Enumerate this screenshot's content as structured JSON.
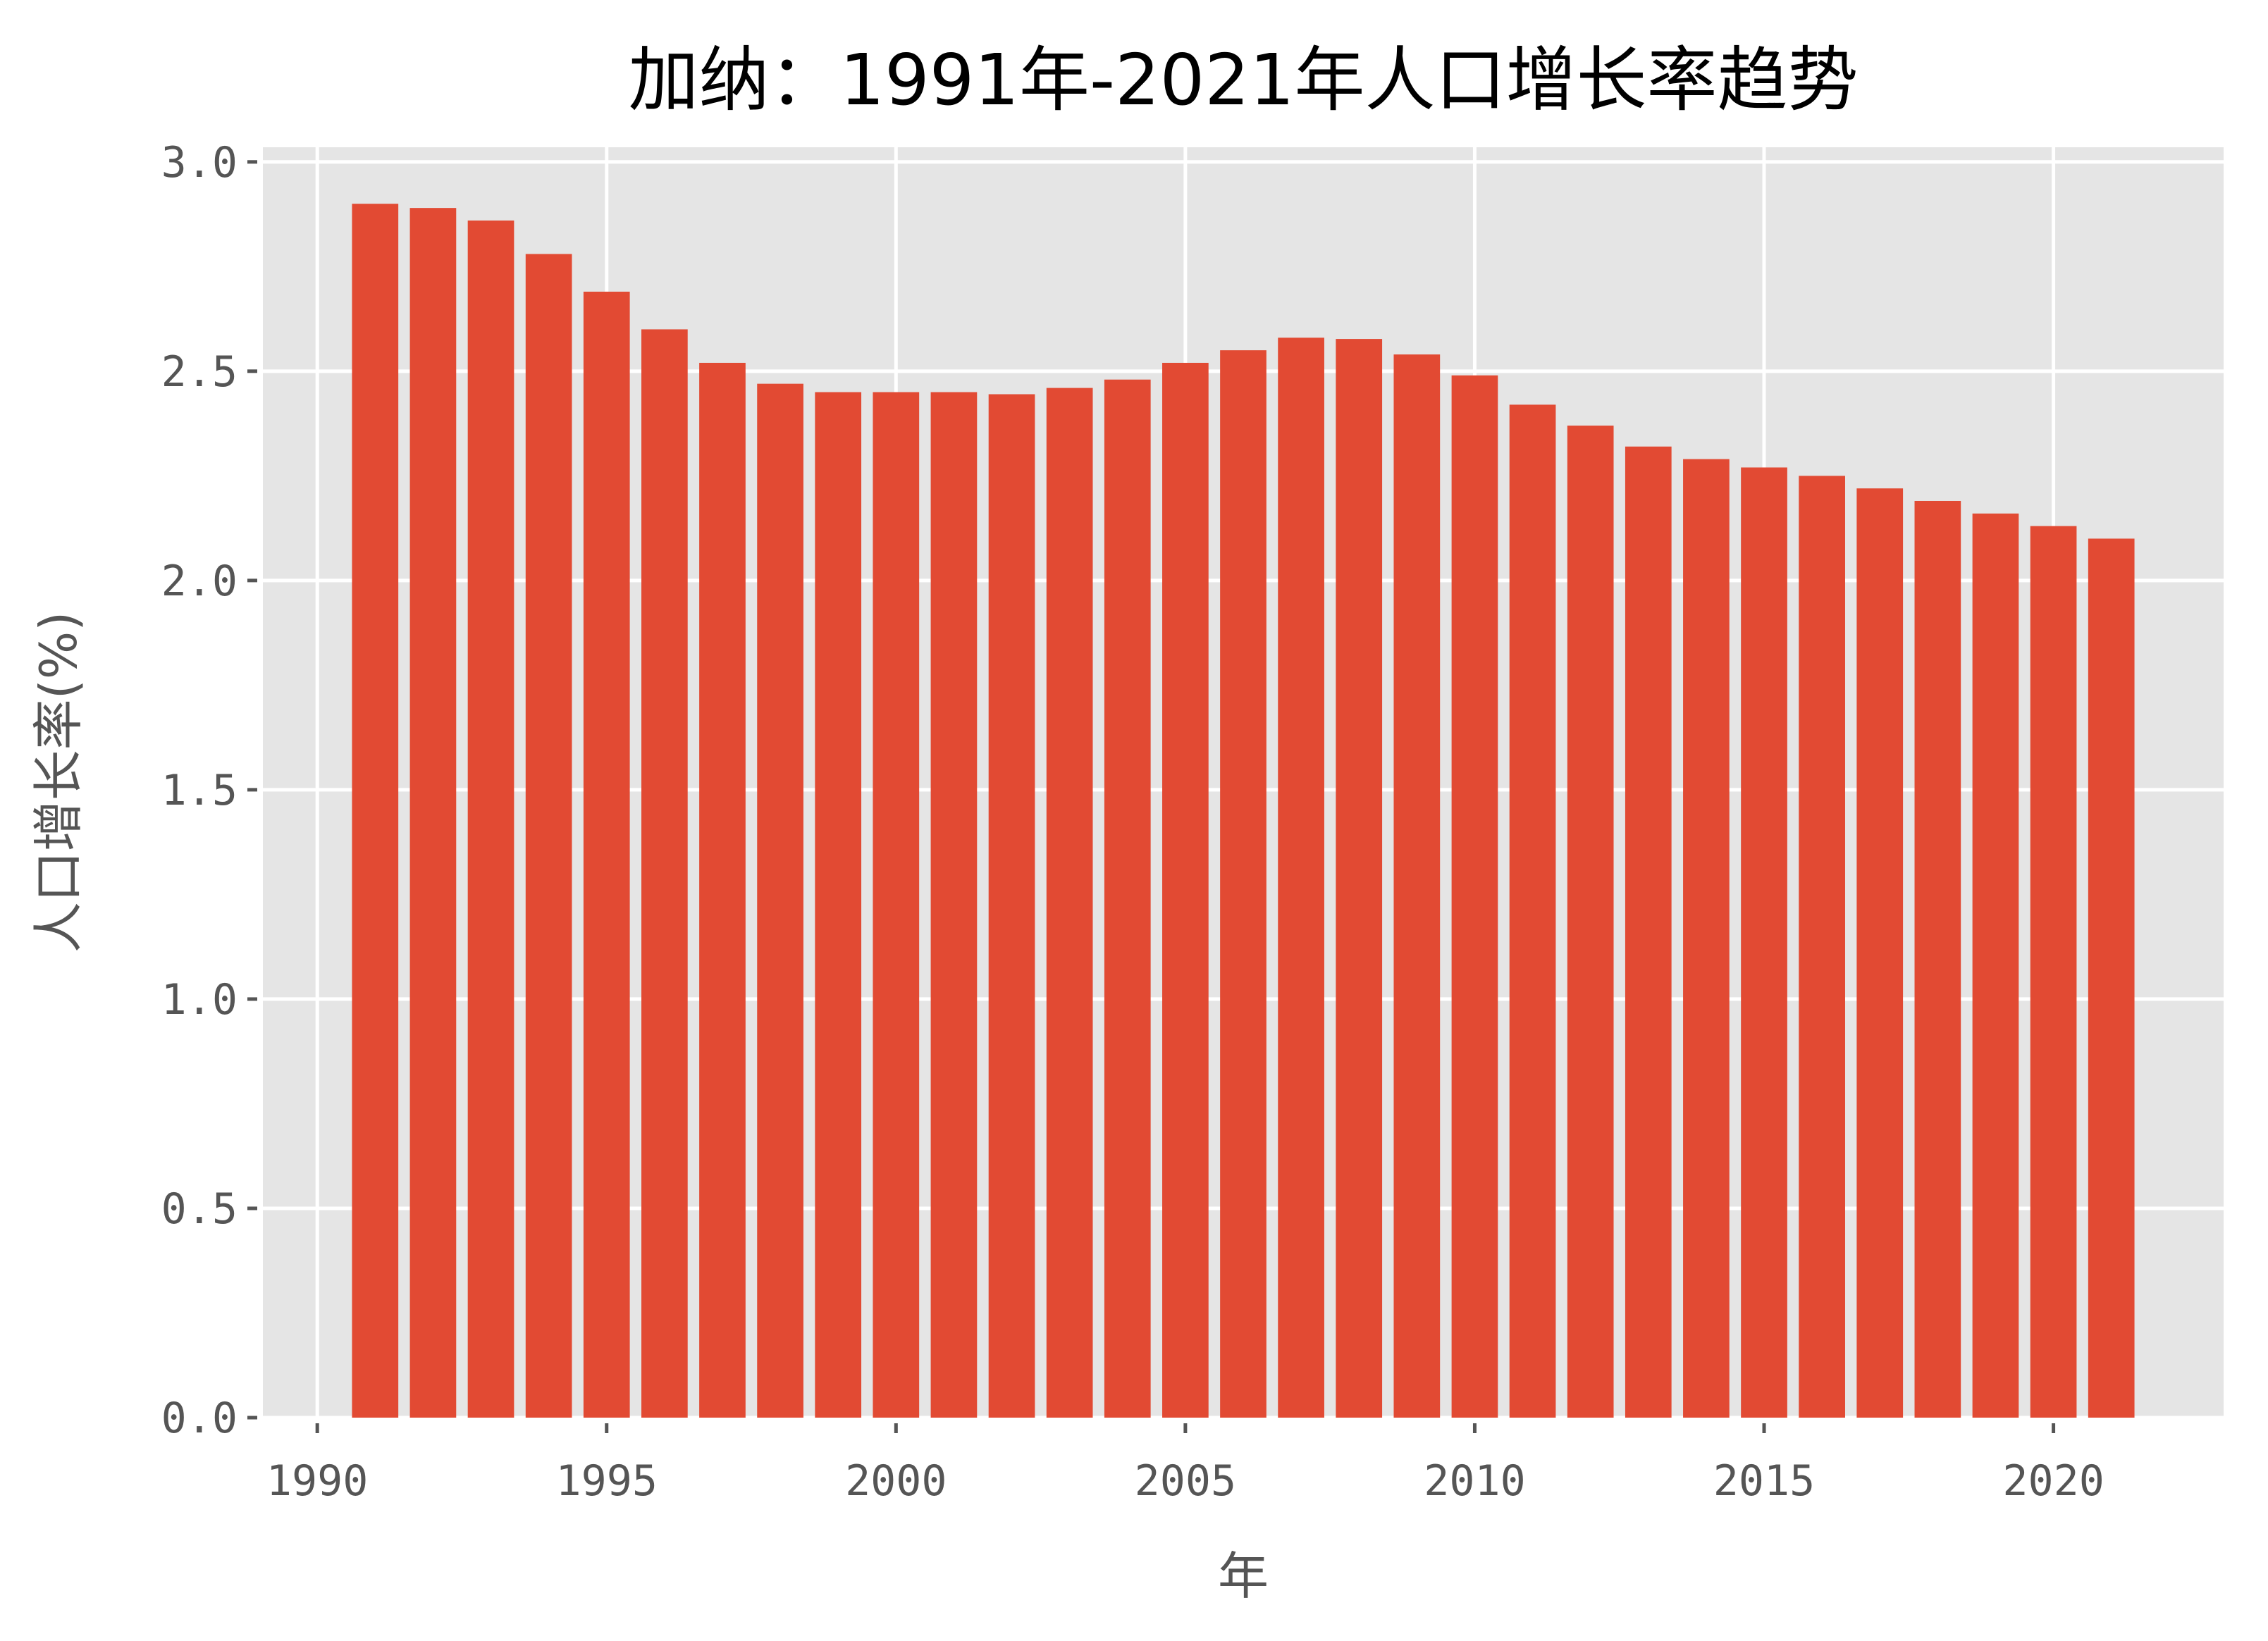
{
  "chart_data": {
    "type": "bar",
    "title": "加纳：1991年-2021年人口增长率趋势",
    "xlabel": "年",
    "ylabel": "人口增长率(%)",
    "categories": [
      1991,
      1992,
      1993,
      1994,
      1995,
      1996,
      1997,
      1998,
      1999,
      2000,
      2001,
      2002,
      2003,
      2004,
      2005,
      2006,
      2007,
      2008,
      2009,
      2010,
      2011,
      2012,
      2013,
      2014,
      2015,
      2016,
      2017,
      2018,
      2019,
      2020,
      2021
    ],
    "values": [
      2.9,
      2.89,
      2.86,
      2.78,
      2.69,
      2.6,
      2.52,
      2.47,
      2.45,
      2.45,
      2.45,
      2.445,
      2.46,
      2.48,
      2.52,
      2.55,
      2.58,
      2.577,
      2.54,
      2.49,
      2.42,
      2.37,
      2.32,
      2.29,
      2.27,
      2.25,
      2.22,
      2.19,
      2.16,
      2.13,
      2.1
    ],
    "xlim": [
      1989.06,
      2022.94
    ],
    "ylim": [
      0,
      3.035
    ],
    "xticks": [
      1990,
      1995,
      2000,
      2005,
      2010,
      2015,
      2020
    ],
    "xtick_labels": [
      "1990",
      "1995",
      "2000",
      "2005",
      "2010",
      "2015",
      "2020"
    ],
    "yticks": [
      0.0,
      0.5,
      1.0,
      1.5,
      2.0,
      2.5,
      3.0
    ],
    "ytick_labels": [
      "0.0",
      "0.5",
      "1.0",
      "1.5",
      "2.0",
      "2.5",
      "3.0"
    ],
    "bar_width": 0.8,
    "grid": true,
    "legend": null,
    "colors": {
      "bar": "#E24A33",
      "plot_background": "#E5E5E5",
      "grid": "#FFFFFF",
      "tick": "#555555",
      "title": "#000000"
    }
  }
}
